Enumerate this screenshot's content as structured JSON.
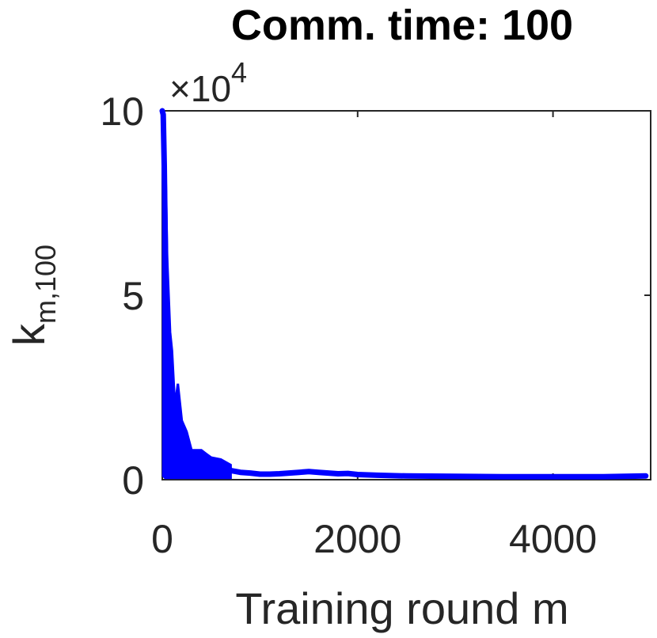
{
  "chart_data": {
    "type": "line",
    "title": "Comm. time: 100",
    "xlabel": "Training round m",
    "ylabel": {
      "base": "k",
      "subscript": "m,100"
    },
    "y_exponent": {
      "prefix": "×10",
      "power": "4"
    },
    "xlim": [
      0,
      5000
    ],
    "ylim": [
      0,
      10
    ],
    "xticks": [
      0,
      2000,
      4000
    ],
    "xtick_labels": [
      "0",
      "2000",
      "4000"
    ],
    "yticks": [
      0,
      5,
      10
    ],
    "ytick_labels": [
      "0",
      "5",
      "10"
    ],
    "grid": false,
    "series": [
      {
        "color": "#0000ff",
        "x": [
          0,
          10,
          20,
          30,
          40,
          50,
          60,
          80,
          100,
          120,
          150,
          180,
          200,
          230,
          260,
          300,
          350,
          400,
          450,
          500,
          550,
          600,
          650,
          700,
          800,
          900,
          1000,
          1100,
          1200,
          1300,
          1400,
          1500,
          1600,
          1700,
          1800,
          1900,
          2000,
          2200,
          2500,
          3000,
          3500,
          4000,
          4500,
          4950
        ],
        "y": [
          10,
          9.9,
          8.5,
          6.5,
          5.0,
          4.0,
          3.0,
          2.2,
          1.5,
          1.0,
          0.8,
          1.2,
          0.6,
          0.7,
          0.5,
          0.4,
          0.5,
          0.4,
          0.35,
          0.5,
          0.3,
          0.3,
          0.4,
          0.25,
          0.2,
          0.18,
          0.15,
          0.15,
          0.16,
          0.18,
          0.2,
          0.22,
          0.2,
          0.18,
          0.16,
          0.17,
          0.14,
          0.12,
          0.1,
          0.09,
          0.08,
          0.08,
          0.08,
          0.1
        ]
      }
    ],
    "envelope": {
      "color": "#0000ff",
      "x": [
        10,
        30,
        50,
        80,
        100,
        130,
        160,
        200,
        250,
        300,
        400,
        450,
        500,
        600,
        700
      ],
      "upper": [
        10,
        9.0,
        6.0,
        4.0,
        3.5,
        2.0,
        2.6,
        1.6,
        1.3,
        0.8,
        0.8,
        0.7,
        0.6,
        0.55,
        0.4
      ],
      "lower": [
        0.1,
        0.05,
        0.05,
        0.05,
        0.05,
        0.05,
        0.05,
        0.05,
        0.05,
        0.05,
        0.05,
        0.05,
        0.05,
        0.05,
        0.05
      ]
    }
  }
}
